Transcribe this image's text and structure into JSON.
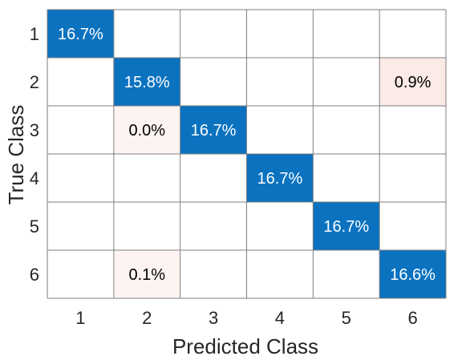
{
  "chart_data": {
    "type": "heatmap",
    "title": "",
    "xlabel": "Predicted Class",
    "ylabel": "True Class",
    "x_categories": [
      "1",
      "2",
      "3",
      "4",
      "5",
      "6"
    ],
    "y_categories": [
      "1",
      "2",
      "3",
      "4",
      "5",
      "6"
    ],
    "cells": [
      {
        "row": 0,
        "col": 0,
        "label": "16.7%",
        "value": 16.7,
        "kind": "diagonal"
      },
      {
        "row": 1,
        "col": 1,
        "label": "15.8%",
        "value": 15.8,
        "kind": "diagonal"
      },
      {
        "row": 1,
        "col": 5,
        "label": "0.9%",
        "value": 0.9,
        "kind": "off"
      },
      {
        "row": 2,
        "col": 1,
        "label": "0.0%",
        "value": 0.0,
        "kind": "off"
      },
      {
        "row": 2,
        "col": 2,
        "label": "16.7%",
        "value": 16.7,
        "kind": "diagonal"
      },
      {
        "row": 3,
        "col": 3,
        "label": "16.7%",
        "value": 16.7,
        "kind": "diagonal"
      },
      {
        "row": 4,
        "col": 4,
        "label": "16.7%",
        "value": 16.7,
        "kind": "diagonal"
      },
      {
        "row": 5,
        "col": 1,
        "label": "0.1%",
        "value": 0.1,
        "kind": "off"
      },
      {
        "row": 5,
        "col": 5,
        "label": "16.6%",
        "value": 16.6,
        "kind": "diagonal"
      }
    ],
    "colors": {
      "diagonal": "#0b72c0",
      "off_strong": "#fbeae6",
      "off_weak": "#fdf4f2",
      "grid": "#7f7f7f",
      "diagonal_text": "#ffffff",
      "off_text": "#000000"
    },
    "grid": true
  }
}
